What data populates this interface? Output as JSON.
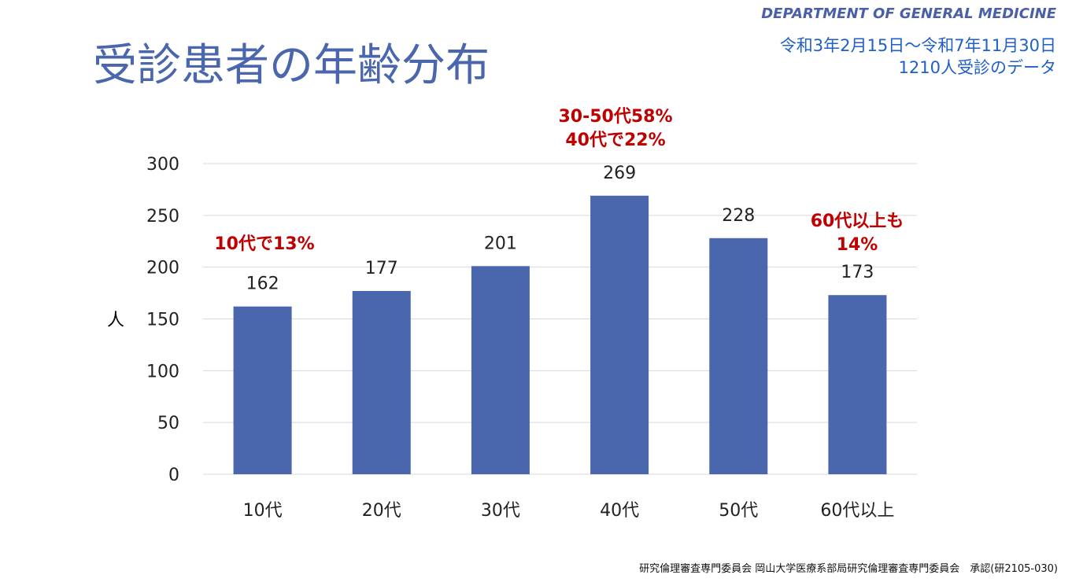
{
  "header": {
    "department": "DEPARTMENT OF GENERAL MEDICINE",
    "title": "受診患者の年齢分布",
    "period": "令和3年2月15日～令和7年11月30日",
    "count_note": "1210人受診のデータ"
  },
  "annotations": {
    "teens": "10代で13%",
    "middle_line1": "30-50代58%",
    "middle_line2": "40代で22%",
    "senior_line1": "60代以上も",
    "senior_line2": "14%"
  },
  "footer": "研究倫理審査専門委員会 岡山大学医療系部局研究倫理審査専門委員会　承認(研2105-030)",
  "colors": {
    "bar": "#4a66ac",
    "annotation": "#c00000",
    "title": "#4a66ac"
  },
  "chart_data": {
    "type": "bar",
    "categories": [
      "10代",
      "20代",
      "30代",
      "40代",
      "50代",
      "60代以上"
    ],
    "values": [
      162,
      177,
      201,
      269,
      228,
      173
    ],
    "ylabel": "人",
    "ylim": [
      0,
      300
    ],
    "yticks": [
      0,
      50,
      100,
      150,
      200,
      250,
      300
    ],
    "grid": true,
    "data_labels": true
  }
}
